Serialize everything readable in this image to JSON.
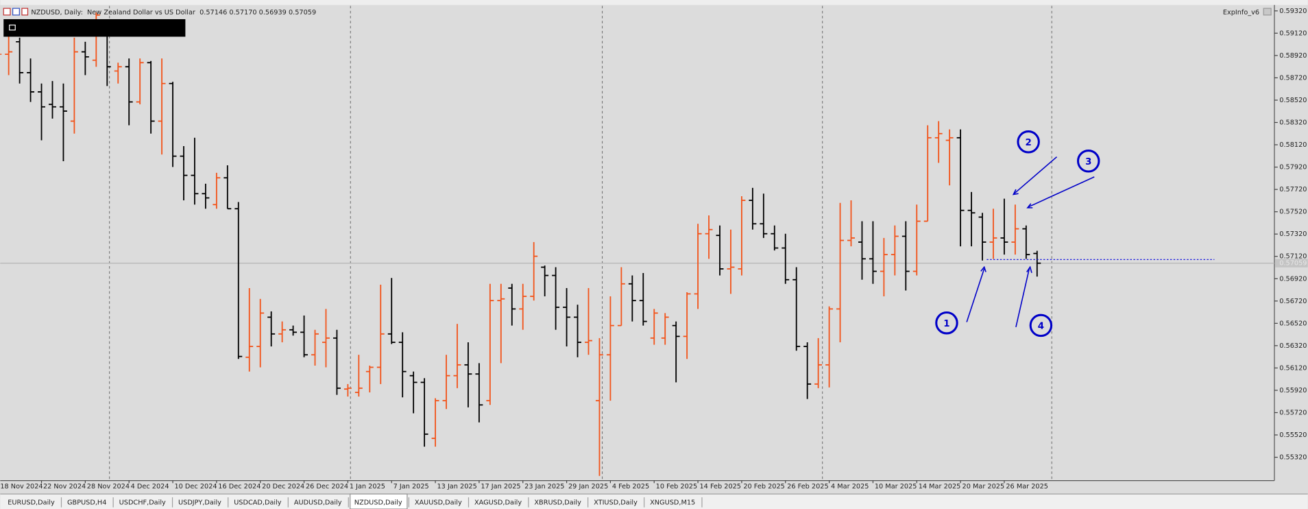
{
  "header": {
    "text": "NZDUSD, Daily:  New Zealand Dollar vs US Dollar  0.57146 0.57170 0.56939 0.57059",
    "indicator": "ExpInfo_v6"
  },
  "chart_data": {
    "type": "ohlc",
    "categories": [
      "18 Nov 2024",
      null,
      null,
      null,
      "22 Nov 2024",
      null,
      null,
      null,
      "28 Nov 2024",
      null,
      null,
      null,
      "4 Dec 2024",
      null,
      null,
      null,
      "10 Dec 2024",
      null,
      null,
      null,
      "16 Dec 2024",
      null,
      null,
      null,
      "20 Dec 2024",
      null,
      null,
      null,
      "26 Dec 2024",
      null,
      null,
      null,
      "1 Jan 2025",
      null,
      null,
      null,
      "7 Jan 2025",
      null,
      null,
      null,
      "13 Jan 2025",
      null,
      null,
      null,
      "17 Jan 2025",
      null,
      null,
      null,
      "23 Jan 2025",
      null,
      null,
      null,
      "29 Jan 2025",
      null,
      null,
      null,
      "4 Feb 2025",
      null,
      null,
      null,
      "10 Feb 2025",
      null,
      null,
      null,
      "14 Feb 2025",
      null,
      null,
      null,
      "20 Feb 2025",
      null,
      null,
      null,
      "26 Feb 2025",
      null,
      null,
      null,
      "4 Mar 2025",
      null,
      null,
      null,
      "10 Mar 2025",
      null,
      null,
      null,
      "14 Mar 2025",
      null,
      null,
      null,
      "20 Mar 2025",
      null,
      null,
      null,
      "26 Mar 2025",
      null,
      null,
      null
    ],
    "open": [
      0.58744,
      0.58931,
      0.59043,
      0.58766,
      0.58594,
      0.58482,
      0.5846,
      0.58332,
      0.58953,
      0.58878,
      0.59118,
      0.58781,
      0.58819,
      0.58504,
      0.58856,
      0.58332,
      0.58669,
      0.58018,
      0.57846,
      0.57682,
      0.57584,
      0.57824,
      0.57547,
      0.56216,
      0.56313,
      0.56575,
      0.56425,
      0.56462,
      0.5644,
      0.56238,
      0.5635,
      0.56388,
      0.55931,
      0.55901,
      0.56088,
      0.56126,
      0.56425,
      0.5635,
      0.56051,
      0.55991,
      0.5549,
      0.55827,
      0.56051,
      0.56148,
      0.56066,
      0.55827,
      0.56724,
      0.56836,
      0.56649,
      0.56762,
      0.57023,
      0.56949,
      0.56664,
      0.56575,
      0.5635,
      0.55827,
      0.56238,
      0.565,
      0.56874,
      0.56724,
      0.56388,
      0.56388,
      0.565,
      0.56403,
      0.56784,
      0.57323,
      0.57308,
      0.57008,
      0.57008,
      0.57622,
      0.57412,
      0.57323,
      0.57195,
      0.56911,
      0.56313,
      0.55976,
      0.56148,
      0.56649,
      0.57263,
      0.57248,
      0.57098,
      0.56986,
      0.57136,
      0.573,
      0.56986,
      0.57435,
      0.58183,
      0.5816,
      0.58183,
      0.57532,
      0.57472,
      0.57248,
      0.57285,
      0.57248,
      0.57367,
      0.57146
    ],
    "high": [
      0.59006,
      0.59118,
      0.5908,
      0.58893,
      0.58669,
      0.58691,
      0.58669,
      0.5908,
      0.59043,
      0.59305,
      0.59193,
      0.58856,
      0.58893,
      0.58893,
      0.58871,
      0.58893,
      0.58684,
      0.58108,
      0.58183,
      0.57771,
      0.57869,
      0.57936,
      0.57607,
      0.56836,
      0.56739,
      0.56627,
      0.56537,
      0.565,
      0.5659,
      0.56462,
      0.56649,
      0.56462,
      0.55976,
      0.56238,
      0.56141,
      0.56866,
      0.56926,
      0.5644,
      0.56088,
      0.56029,
      0.55849,
      0.56238,
      0.56515,
      0.5635,
      0.56163,
      0.56874,
      0.56874,
      0.56874,
      0.56874,
      0.57248,
      0.57038,
      0.57023,
      0.56836,
      0.56687,
      0.56836,
      0.56388,
      0.56762,
      0.57023,
      0.56949,
      0.56971,
      0.56649,
      0.56612,
      0.56537,
      0.56799,
      0.57412,
      0.57487,
      0.57397,
      0.5736,
      0.57659,
      0.57734,
      0.57682,
      0.57397,
      0.57323,
      0.57023,
      0.5635,
      0.56388,
      0.56672,
      0.57599,
      0.57622,
      0.57435,
      0.57435,
      0.57285,
      0.57397,
      0.57435,
      0.57584,
      0.58295,
      0.58332,
      0.58258,
      0.58258,
      0.57697,
      0.5751,
      0.57547,
      0.57637,
      0.57584,
      0.57397,
      0.5717
    ],
    "low": [
      0.58706,
      0.58744,
      0.58669,
      0.58504,
      0.5816,
      0.58355,
      0.57973,
      0.5822,
      0.58744,
      0.58819,
      0.58647,
      0.58669,
      0.58295,
      0.58482,
      0.5822,
      0.58033,
      0.57921,
      0.57622,
      0.57584,
      0.57547,
      0.57547,
      0.57547,
      0.56201,
      0.56088,
      0.56126,
      0.56313,
      0.5635,
      0.5641,
      0.56216,
      0.56141,
      0.56126,
      0.55879,
      0.55864,
      0.55864,
      0.55901,
      0.55976,
      0.56335,
      0.55857,
      0.55714,
      0.55415,
      0.55415,
      0.55752,
      0.55939,
      0.55767,
      0.55632,
      0.55789,
      0.56163,
      0.565,
      0.56462,
      0.56724,
      0.56762,
      0.56462,
      0.56313,
      0.56216,
      0.56238,
      0.55153,
      0.55827,
      0.565,
      0.56537,
      0.565,
      0.56328,
      0.56328,
      0.55991,
      0.56201,
      0.56649,
      0.57098,
      0.56949,
      0.56784,
      0.56949,
      0.5736,
      0.57285,
      0.57173,
      0.56874,
      0.56275,
      0.55842,
      0.55939,
      0.55946,
      0.5635,
      0.5721,
      0.56911,
      0.56874,
      0.56762,
      0.56949,
      0.56814,
      0.56949,
      0.57435,
      0.57958,
      0.57756,
      0.5721,
      0.5721,
      0.57083,
      0.57098,
      0.57136,
      0.57136,
      0.57098,
      0.56939
    ],
    "close": [
      0.58931,
      0.58953,
      0.58766,
      0.58594,
      0.5846,
      0.5846,
      0.58422,
      0.58953,
      0.58908,
      0.59282,
      0.58819,
      0.58819,
      0.58504,
      0.58856,
      0.58332,
      0.58669,
      0.58018,
      0.57846,
      0.57682,
      0.57644,
      0.57824,
      0.57547,
      0.56223,
      0.56313,
      0.56612,
      0.56425,
      0.56462,
      0.5644,
      0.56238,
      0.56425,
      0.56388,
      0.55939,
      0.55939,
      0.55939,
      0.56126,
      0.56425,
      0.5635,
      0.56088,
      0.55991,
      0.55527,
      0.55827,
      0.56051,
      0.56148,
      0.56066,
      0.55789,
      0.56724,
      0.56739,
      0.56649,
      0.56762,
      0.57121,
      0.56949,
      0.56664,
      0.56575,
      0.5635,
      0.56365,
      0.56238,
      0.565,
      0.56874,
      0.56724,
      0.56537,
      0.56612,
      0.56575,
      0.56403,
      0.56784,
      0.57323,
      0.5736,
      0.57008,
      0.57023,
      0.57622,
      0.57412,
      0.57323,
      0.57195,
      0.56911,
      0.56313,
      0.55976,
      0.56148,
      0.56649,
      0.57263,
      0.57285,
      0.57098,
      0.56986,
      0.57136,
      0.573,
      0.56986,
      0.57435,
      0.58183,
      0.5822,
      0.58183,
      0.57532,
      0.5751,
      0.57248,
      0.57285,
      0.57248,
      0.57367,
      0.57136,
      0.57059
    ],
    "up_color": "#f2541b",
    "down_color": "#000000",
    "ylim": [
      0.55118,
      0.59365
    ],
    "yticks": [
      {
        "value": 0.5932,
        "label": "0.59320"
      },
      {
        "value": 0.5912,
        "label": "0.59120"
      },
      {
        "value": 0.5892,
        "label": "0.58920"
      },
      {
        "value": 0.5872,
        "label": "0.58720"
      },
      {
        "value": 0.5852,
        "label": "0.58520"
      },
      {
        "value": 0.5832,
        "label": "0.58320"
      },
      {
        "value": 0.5812,
        "label": "0.58120"
      },
      {
        "value": 0.5792,
        "label": "0.57920"
      },
      {
        "value": 0.5772,
        "label": "0.57720"
      },
      {
        "value": 0.5752,
        "label": "0.57520"
      },
      {
        "value": 0.5732,
        "label": "0.57320"
      },
      {
        "value": 0.5712,
        "label": "0.57120"
      },
      {
        "value": 0.5692,
        "label": "0.56920"
      },
      {
        "value": 0.5672,
        "label": "0.56720"
      },
      {
        "value": 0.5652,
        "label": "0.56520"
      },
      {
        "value": 0.5632,
        "label": "0.56320"
      },
      {
        "value": 0.5612,
        "label": "0.56120"
      },
      {
        "value": 0.5592,
        "label": "0.55920"
      },
      {
        "value": 0.5572,
        "label": "0.55720"
      },
      {
        "value": 0.5552,
        "label": "0.55520"
      },
      {
        "value": 0.5532,
        "label": "0.55320"
      }
    ],
    "current_price_label": "0.57059"
  },
  "annotations": [
    "1",
    "2",
    "3",
    "4"
  ],
  "tabs": [
    "EURUSD,Daily",
    "GBPUSD,H4",
    "USDCHF,Daily",
    "USDJPY,Daily",
    "USDCAD,Daily",
    "AUDUSD,Daily",
    "NZDUSD,Daily",
    "XAUUSD,Daily",
    "XAGUSD,Daily",
    "XBRUSD,Daily",
    "XTIUSD,Daily",
    "XNGUSD,M15"
  ],
  "active_tab": 6
}
